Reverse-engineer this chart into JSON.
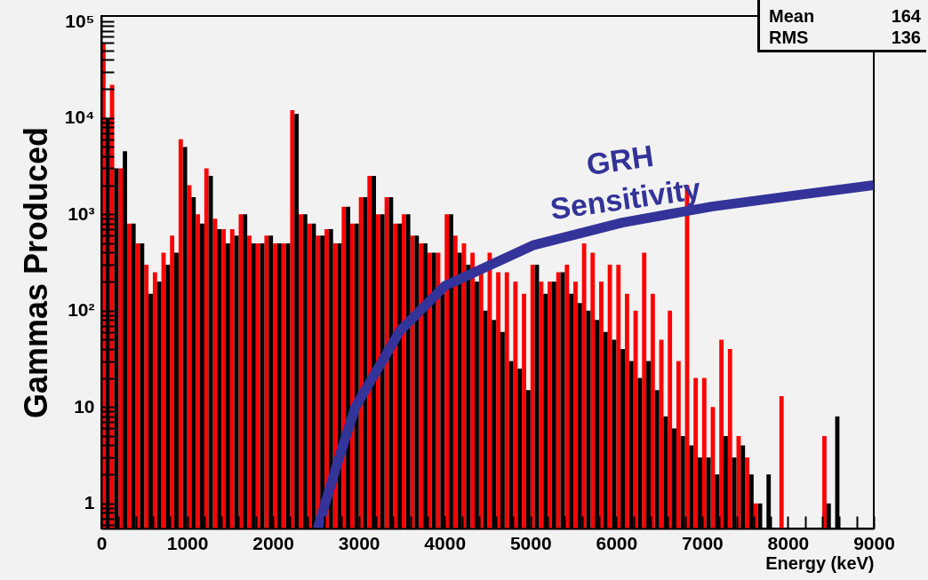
{
  "chart_data": {
    "type": "histogram",
    "xlabel": "Energy (keV)",
    "ylabel": "Gammas Produced",
    "log": true,
    "bins": [
      0,
      100,
      200,
      300,
      400,
      500,
      600,
      700,
      800,
      900,
      1000,
      1100,
      1200,
      1300,
      1400,
      1500,
      1600,
      1700,
      1800,
      1900,
      2000,
      2100,
      2200,
      2300,
      2400,
      2500,
      2600,
      2700,
      2800,
      2900,
      3000,
      3100,
      3200,
      3300,
      3400,
      3500,
      3600,
      3700,
      3800,
      3900,
      4000,
      4100,
      4200,
      4300,
      4400,
      4500,
      4600,
      4700,
      4800,
      4900,
      5000,
      5100,
      5200,
      5300,
      5400,
      5500,
      5600,
      5700,
      5800,
      5900,
      6000,
      6100,
      6200,
      6300,
      6400,
      6500,
      6600,
      6700,
      6800,
      6900,
      7000,
      7100,
      7200,
      7300,
      7400,
      7500,
      7600,
      7700,
      7800,
      7900,
      8000,
      8100,
      8200,
      8300,
      8400,
      8500,
      8600,
      8700,
      8800,
      8900,
      9000
    ],
    "series": [
      {
        "color": "#ff0000",
        "values": [
          60000,
          22000,
          3000,
          800,
          500,
          300,
          250,
          400,
          600,
          6000,
          2000,
          1000,
          3000,
          900,
          700,
          700,
          1000,
          600,
          500,
          600,
          500,
          500,
          12000,
          1000,
          800,
          600,
          700,
          500,
          1200,
          800,
          1500,
          2500,
          1000,
          1500,
          800,
          1000,
          600,
          500,
          400,
          400,
          1000,
          600,
          500,
          400,
          300,
          400,
          250,
          250,
          200,
          150,
          300,
          200,
          200,
          250,
          300,
          200,
          500,
          400,
          200,
          300,
          300,
          150,
          100,
          400,
          150,
          50,
          100,
          30,
          2000,
          20,
          20,
          10,
          50,
          40,
          5,
          3,
          1,
          null,
          null,
          13,
          null,
          null,
          null,
          null,
          5,
          null,
          null,
          null,
          null,
          null
        ]
      },
      {
        "color": "#000000",
        "values": [
          10000,
          3000,
          4500,
          800,
          500,
          150,
          200,
          300,
          400,
          5000,
          1500,
          800,
          2500,
          700,
          500,
          600,
          1000,
          500,
          500,
          600,
          500,
          500,
          11000,
          1000,
          800,
          600,
          700,
          500,
          1200,
          800,
          1500,
          2500,
          1000,
          1500,
          800,
          1000,
          600,
          500,
          400,
          150,
          1000,
          400,
          300,
          200,
          100,
          80,
          60,
          30,
          25,
          15,
          300,
          150,
          200,
          250,
          150,
          120,
          100,
          80,
          60,
          50,
          40,
          30,
          20,
          30,
          15,
          8,
          6,
          5,
          4,
          3,
          3,
          2,
          5,
          3,
          4,
          2,
          1,
          2,
          null,
          null,
          null,
          null,
          null,
          null,
          1,
          8,
          null,
          null,
          null,
          null
        ]
      },
      {
        "type": "line",
        "name": "GRH Sensitivity",
        "color": "#333399",
        "x": [
          2520,
          2760,
          2960,
          3480,
          4000,
          5040,
          6070,
          7110,
          8150,
          9000
        ],
        "values": [
          0.55,
          2.8,
          10,
          62,
          180,
          480,
          820,
          1200,
          1600,
          2000
        ]
      }
    ],
    "xlim": [
      0,
      9000
    ],
    "ylim": [
      0.55,
      114000
    ],
    "xticks": [
      0,
      {
        "value": 200,
        "label": null
      },
      {
        "value": 400,
        "label": null
      },
      {
        "value": 600,
        "label": null
      },
      {
        "value": 800,
        "label": null
      },
      1000,
      {
        "value": 1200,
        "label": null
      },
      {
        "value": 1400,
        "label": null
      },
      {
        "value": 1600,
        "label": null
      },
      {
        "value": 1800,
        "label": null
      },
      2000,
      {
        "value": 2200,
        "label": null
      },
      {
        "value": 2400,
        "label": null
      },
      {
        "value": 2600,
        "label": null
      },
      {
        "value": 2800,
        "label": null
      },
      3000,
      {
        "value": 3200,
        "label": null
      },
      {
        "value": 3400,
        "label": null
      },
      {
        "value": 3600,
        "label": null
      },
      {
        "value": 3800,
        "label": null
      },
      4000,
      {
        "value": 4200,
        "label": null
      },
      {
        "value": 4400,
        "label": null
      },
      {
        "value": 4600,
        "label": null
      },
      {
        "value": 4800,
        "label": null
      },
      5000,
      {
        "value": 5200,
        "label": null
      },
      {
        "value": 5400,
        "label": null
      },
      {
        "value": 5600,
        "label": null
      },
      {
        "value": 5800,
        "label": null
      },
      6000,
      {
        "value": 6200,
        "label": null
      },
      {
        "value": 6400,
        "label": null
      },
      {
        "value": 6600,
        "label": null
      },
      {
        "value": 6800,
        "label": null
      },
      7000,
      {
        "value": 7200,
        "label": null
      },
      {
        "value": 7400,
        "label": null
      },
      {
        "value": 7600,
        "label": null
      },
      {
        "value": 7800,
        "label": null
      },
      8000,
      {
        "value": 8200,
        "label": null
      },
      {
        "value": 8400,
        "label": null
      },
      {
        "value": 8600,
        "label": null
      },
      {
        "value": 8800,
        "label": null
      },
      9000
    ],
    "yticks": [
      {
        "value": 0.6,
        "label": null
      },
      {
        "value": 0.7,
        "label": null
      },
      {
        "value": 0.8,
        "label": null
      },
      {
        "value": 0.9,
        "label": null
      },
      1,
      {
        "value": 2,
        "label": null
      },
      {
        "value": 3,
        "label": null
      },
      {
        "value": 4,
        "label": null
      },
      {
        "value": 5,
        "label": null
      },
      {
        "value": 6,
        "label": null
      },
      {
        "value": 7,
        "label": null
      },
      {
        "value": 8,
        "label": null
      },
      {
        "value": 9,
        "label": null
      },
      10,
      {
        "value": 20,
        "label": null
      },
      {
        "value": 30,
        "label": null
      },
      {
        "value": 40,
        "label": null
      },
      {
        "value": 50,
        "label": null
      },
      {
        "value": 60,
        "label": null
      },
      {
        "value": 70,
        "label": null
      },
      {
        "value": 80,
        "label": null
      },
      {
        "value": 90,
        "label": null
      },
      {
        "value": 100,
        "label": "10²"
      },
      {
        "value": 200,
        "label": null
      },
      {
        "value": 300,
        "label": null
      },
      {
        "value": 400,
        "label": null
      },
      {
        "value": 500,
        "label": null
      },
      {
        "value": 600,
        "label": null
      },
      {
        "value": 700,
        "label": null
      },
      {
        "value": 800,
        "label": null
      },
      {
        "value": 900,
        "label": null
      },
      {
        "value": 1000,
        "label": "10³"
      },
      {
        "value": 2000,
        "label": null
      },
      {
        "value": 3000,
        "label": null
      },
      {
        "value": 4000,
        "label": null
      },
      {
        "value": 5000,
        "label": null
      },
      {
        "value": 6000,
        "label": null
      },
      {
        "value": 7000,
        "label": null
      },
      {
        "value": 8000,
        "label": null
      },
      {
        "value": 9000,
        "label": null
      },
      {
        "value": 10000,
        "label": "10⁴"
      },
      {
        "value": 20000,
        "label": null
      },
      {
        "value": 30000,
        "label": null
      },
      {
        "value": 40000,
        "label": null
      },
      {
        "value": 50000,
        "label": null
      },
      {
        "value": 60000,
        "label": null
      },
      {
        "value": 70000,
        "label": null
      },
      {
        "value": 80000,
        "label": null
      },
      {
        "value": 90000,
        "label": null
      },
      {
        "value": 100000,
        "label": "10⁵"
      }
    ],
    "annotations": [
      "Mean 164",
      "RMS 136"
    ]
  }
}
